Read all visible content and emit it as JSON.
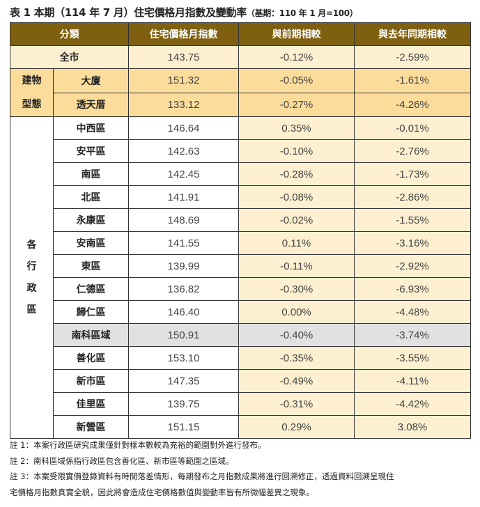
{
  "title": {
    "main": "表 1 本期（114 年 7 月）住宅價格月指數及變動率",
    "sub": "（基期：110 年 1 月=100）"
  },
  "headers": [
    "分類",
    "住宅價格月指數",
    "與前期相較",
    "與去年同期相較"
  ],
  "overall": {
    "name": "全市",
    "index": "143.75",
    "mom": "-0.12%",
    "yoy": "-2.59%"
  },
  "building_group": {
    "label_line1": "建物",
    "label_line2": "型態"
  },
  "building": [
    {
      "name": "大廈",
      "index": "151.32",
      "mom": "-0.05%",
      "yoy": "-1.61%"
    },
    {
      "name": "透天厝",
      "index": "133.12",
      "mom": "-0.27%",
      "yoy": "-4.26%"
    }
  ],
  "district_group": {
    "label": [
      "各",
      "行",
      "政",
      "區"
    ]
  },
  "districts": [
    {
      "name": "中西區",
      "index": "146.64",
      "mom": "0.35%",
      "yoy": "-0.01%"
    },
    {
      "name": "安平區",
      "index": "142.63",
      "mom": "-0.10%",
      "yoy": "-2.76%"
    },
    {
      "name": "南區",
      "index": "142.45",
      "mom": "-0.28%",
      "yoy": "-1.73%"
    },
    {
      "name": "北區",
      "index": "141.91",
      "mom": "-0.08%",
      "yoy": "-2.86%"
    },
    {
      "name": "永康區",
      "index": "148.69",
      "mom": "-0.02%",
      "yoy": "-1.55%"
    },
    {
      "name": "安南區",
      "index": "141.55",
      "mom": "0.11%",
      "yoy": "-3.16%"
    },
    {
      "name": "東區",
      "index": "139.99",
      "mom": "-0.11%",
      "yoy": "-2.92%"
    },
    {
      "name": "仁德區",
      "index": "136.82",
      "mom": "-0.30%",
      "yoy": "-6.93%"
    },
    {
      "name": "歸仁區",
      "index": "146.40",
      "mom": "0.00%",
      "yoy": "-4.48%"
    },
    {
      "name": "南科區域",
      "index": "150.91",
      "mom": "-0.40%",
      "yoy": "-3.74%"
    },
    {
      "name": "善化區",
      "index": "153.10",
      "mom": "-0.35%",
      "yoy": "-3.55%"
    },
    {
      "name": "新市區",
      "index": "147.35",
      "mom": "-0.49%",
      "yoy": "-4.11%"
    },
    {
      "name": "佳里區",
      "index": "139.75",
      "mom": "-0.31%",
      "yoy": "-4.42%"
    },
    {
      "name": "新營區",
      "index": "151.15",
      "mom": "0.29%",
      "yoy": "3.08%"
    }
  ],
  "notes": [
    "註 1：本案行政區研究成果僅針對樣本數較為充裕的範圍對外進行發布。",
    "註 2：南科區域係指行政區包含善化區、新市區等範圍之區域。",
    "註 3：本案受限實價登錄資料有時間落差情形，每期發布之月指數成果將進行回溯修正，透過資料回溯呈現住",
    "宅價格月指數真實全貌，因此將會造成住宅價格數值與變動率皆有所微幅差異之現象。"
  ],
  "colors": {
    "header": "#7f6010",
    "overall_row": "#fdf0d0",
    "building_rows": "#fbdc9a",
    "highlight_row": "#e1e1e1"
  }
}
